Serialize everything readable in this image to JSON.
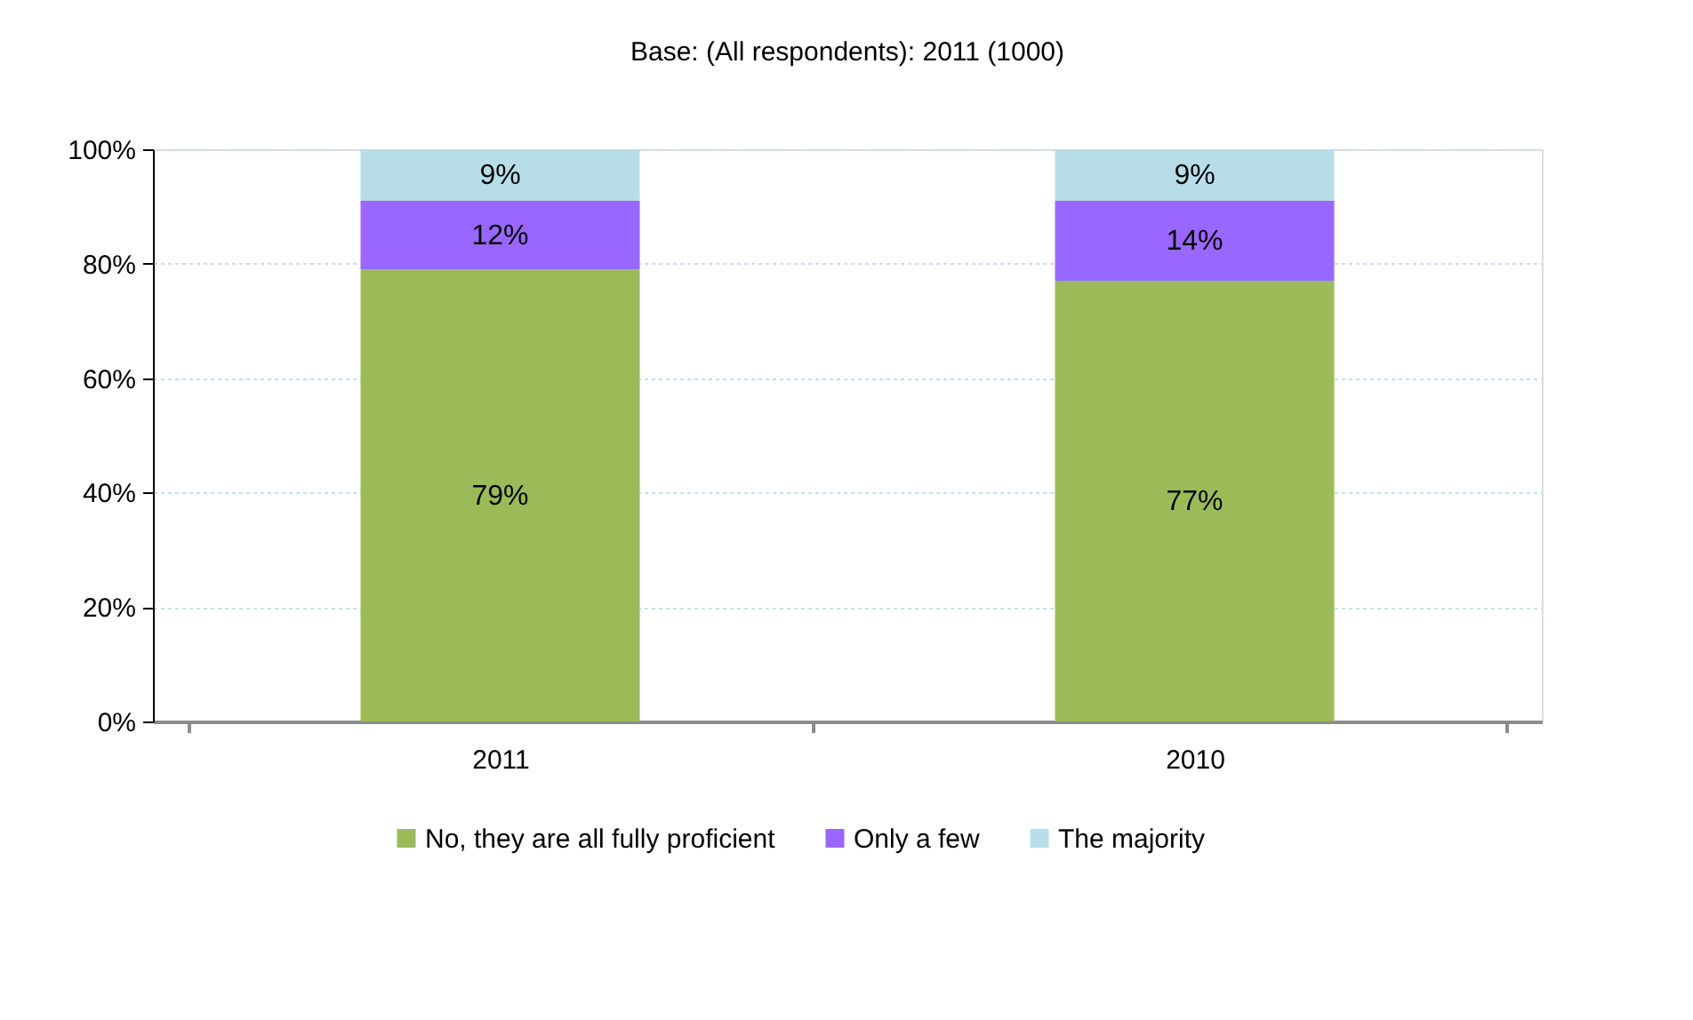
{
  "chart_data": {
    "type": "bar",
    "title": "Base: (All respondents): 2011 (1000)",
    "categories": [
      "2011",
      "2010"
    ],
    "stacked": true,
    "series": [
      {
        "name": "No, they are all fully proficient",
        "color": "#9bbb59",
        "values": [
          79,
          77
        ],
        "value_labels": [
          "79%",
          "77%"
        ]
      },
      {
        "name": "Only a few",
        "color": "#9966ff",
        "values": [
          12,
          14
        ],
        "value_labels": [
          "12%",
          "14%"
        ]
      },
      {
        "name": "The majority",
        "color": "#b7dde8",
        "values": [
          9,
          9
        ],
        "value_labels": [
          "9%",
          "9%"
        ]
      }
    ],
    "ylim": [
      0,
      100
    ],
    "yticks": [
      {
        "value": 0,
        "label": "0%"
      },
      {
        "value": 20,
        "label": "20%"
      },
      {
        "value": 40,
        "label": "40%"
      },
      {
        "value": 60,
        "label": "60%"
      },
      {
        "value": 80,
        "label": "80%"
      },
      {
        "value": 100,
        "label": "100%"
      }
    ],
    "grid": "y",
    "legend": "bottom"
  }
}
